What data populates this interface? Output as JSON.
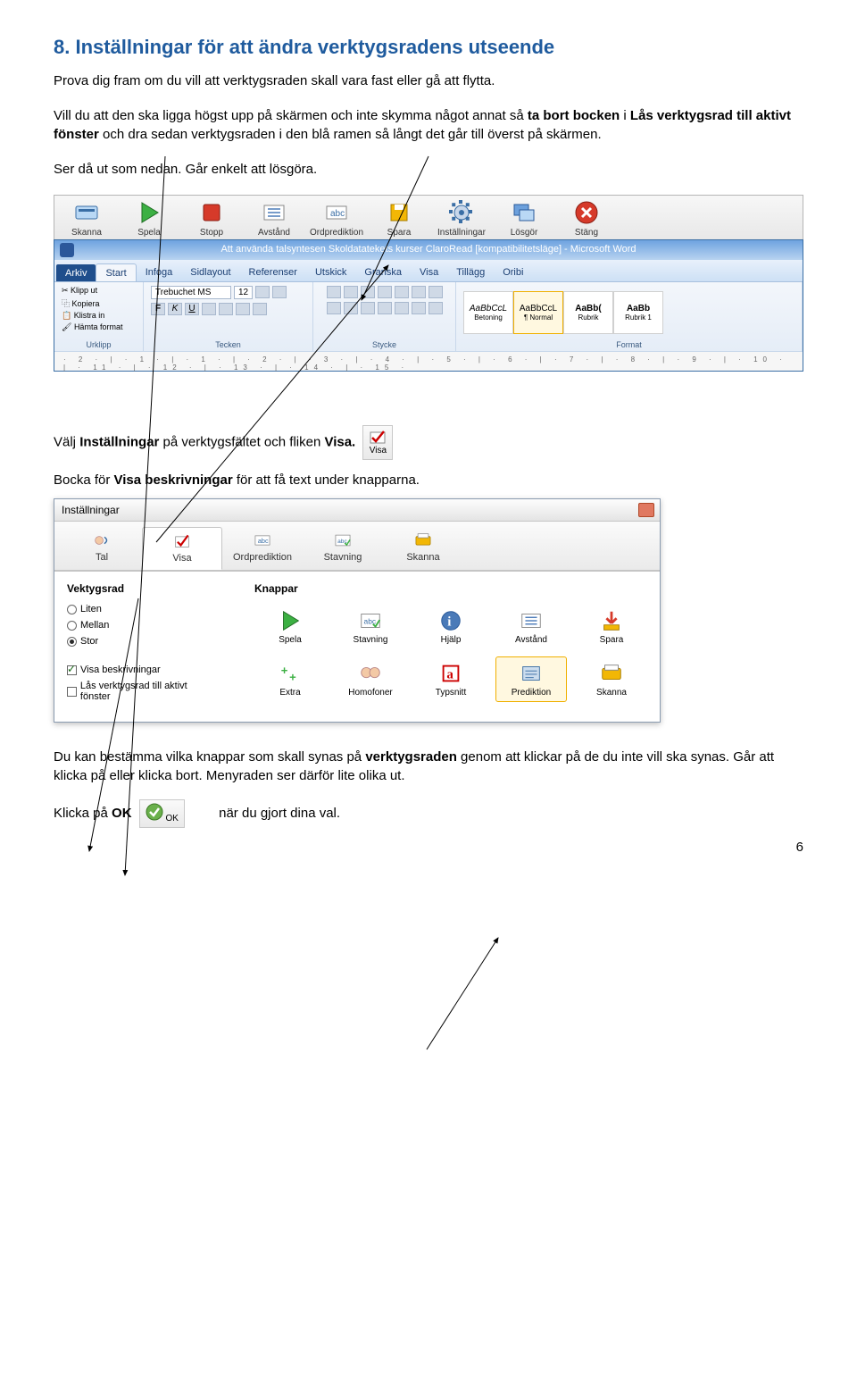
{
  "heading": "8. Inställningar för att ändra verktygsradens utseende",
  "intro": "Prova dig fram om du vill att verktygsraden skall vara fast eller gå att flytta.",
  "para2_a": "Vill du att den ska ligga högst upp på skärmen och inte skymma något annat så ",
  "para2_b": "ta bort bocken",
  "para2_c": " i ",
  "para2_d": "Lås verktygsrad till aktivt fönster",
  "para2_e": " och dra sedan verktygsraden i den blå ramen så långt det går till överst på skärmen.",
  "para3": "Ser då ut som nedan. Går enkelt att lösgöra.",
  "toolbar_items": [
    {
      "label": "Skanna",
      "icon": "scanner"
    },
    {
      "label": "Spela",
      "icon": "play"
    },
    {
      "label": "Stopp",
      "icon": "stop"
    },
    {
      "label": "Avstånd",
      "icon": "avstand"
    },
    {
      "label": "Ordprediktion",
      "icon": "ordpred"
    },
    {
      "label": "Spara",
      "icon": "save"
    },
    {
      "label": "Inställningar",
      "icon": "settings"
    },
    {
      "label": "Lösgör",
      "icon": "losgor"
    },
    {
      "label": "Stäng",
      "icon": "close"
    }
  ],
  "word": {
    "title": "Att använda talsyntesen Skoldatatekets kurser ClaroRead [kompatibilitetsläge] - Microsoft Word",
    "file_tab": "Arkiv",
    "tabs": [
      "Start",
      "Infoga",
      "Sidlayout",
      "Referenser",
      "Utskick",
      "Granska",
      "Visa",
      "Tillägg",
      "Oribi"
    ],
    "active_tab": "Start",
    "clipboard": {
      "klistra": "Klistra in",
      "klipp": "Klipp ut",
      "kopiera": "Kopiera",
      "hamta": "Hämta format",
      "label": "Urklipp"
    },
    "font": {
      "name": "Trebuchet MS",
      "size": "12",
      "label": "Tecken"
    },
    "para": {
      "label": "Stycke"
    },
    "styles": {
      "s1": "AaBbCcL",
      "s1_name": "Betoning",
      "s2": "AaBbCcL",
      "s2_name": "¶ Normal",
      "s3": "AaBb(",
      "s3_name": "Rubrik",
      "s4": "AaBb",
      "s4_name": "Rubrik 1",
      "label": "Format"
    },
    "ruler": "· 2 · | · 1 · | · 1 · | · 2 · | · 3 · | · 4 · | · 5 · | · 6 · | · 7 · | · 8 · | · 9 · | · 10 · | · 11 · | · 12 · | · 13 · | · 14 · | · 15 ·"
  },
  "line_visa_a": "Välj ",
  "line_visa_b": "Inställningar",
  "line_visa_c": " på verktygsfältet och fliken ",
  "line_visa_d": "Visa.",
  "visa_icon_label": "Visa",
  "line_bocka_a": "Bocka för ",
  "line_bocka_b": "Visa beskrivningar",
  "line_bocka_c": " för att få text under knapparna.",
  "dialog": {
    "title": "Inställningar",
    "tabs": [
      {
        "label": "Tal",
        "icon": "tal"
      },
      {
        "label": "Visa",
        "icon": "visa",
        "active": true
      },
      {
        "label": "Ordprediktion",
        "icon": "ordpred"
      },
      {
        "label": "Stavning",
        "icon": "spell"
      },
      {
        "label": "Skanna",
        "icon": "scan"
      }
    ],
    "section_left": "Vektygsrad",
    "radios": [
      {
        "label": "Liten",
        "checked": false
      },
      {
        "label": "Mellan",
        "checked": false
      },
      {
        "label": "Stor",
        "checked": true
      }
    ],
    "checks": [
      {
        "label": "Visa beskrivningar",
        "checked": true
      },
      {
        "label": "Lås verktygsrad till aktivt fönster",
        "checked": false
      }
    ],
    "section_right": "Knappar",
    "knappar_row1": [
      {
        "label": "Spela",
        "icon": "play"
      },
      {
        "label": "Stavning",
        "icon": "spell2"
      },
      {
        "label": "Hjälp",
        "icon": "help"
      },
      {
        "label": "Avstånd",
        "icon": "avstand"
      },
      {
        "label": "Spara",
        "icon": "save2"
      }
    ],
    "knappar_row2": [
      {
        "label": "Extra",
        "icon": "extra"
      },
      {
        "label": "Homofoner",
        "icon": "homo"
      },
      {
        "label": "Typsnitt",
        "icon": "typ"
      },
      {
        "label": "Prediktion",
        "icon": "pred",
        "sel": true
      },
      {
        "label": "Skanna",
        "icon": "scan2"
      }
    ]
  },
  "para_end_a": "Du kan bestämma vilka knappar som skall synas på ",
  "para_end_b": "verktygsraden",
  "para_end_c": " genom att klickar på de du inte vill ska synas. Går att klicka på eller klicka bort. Menyraden ser därför lite olika ut.",
  "line_ok_a": "Klicka på ",
  "line_ok_b": "OK",
  "ok_icon_label": "OK",
  "line_ok_c": "när du gjort dina val.",
  "pagenum": "6",
  "colors": {
    "heading": "#1f5b9e",
    "accent": "#f0b000"
  }
}
